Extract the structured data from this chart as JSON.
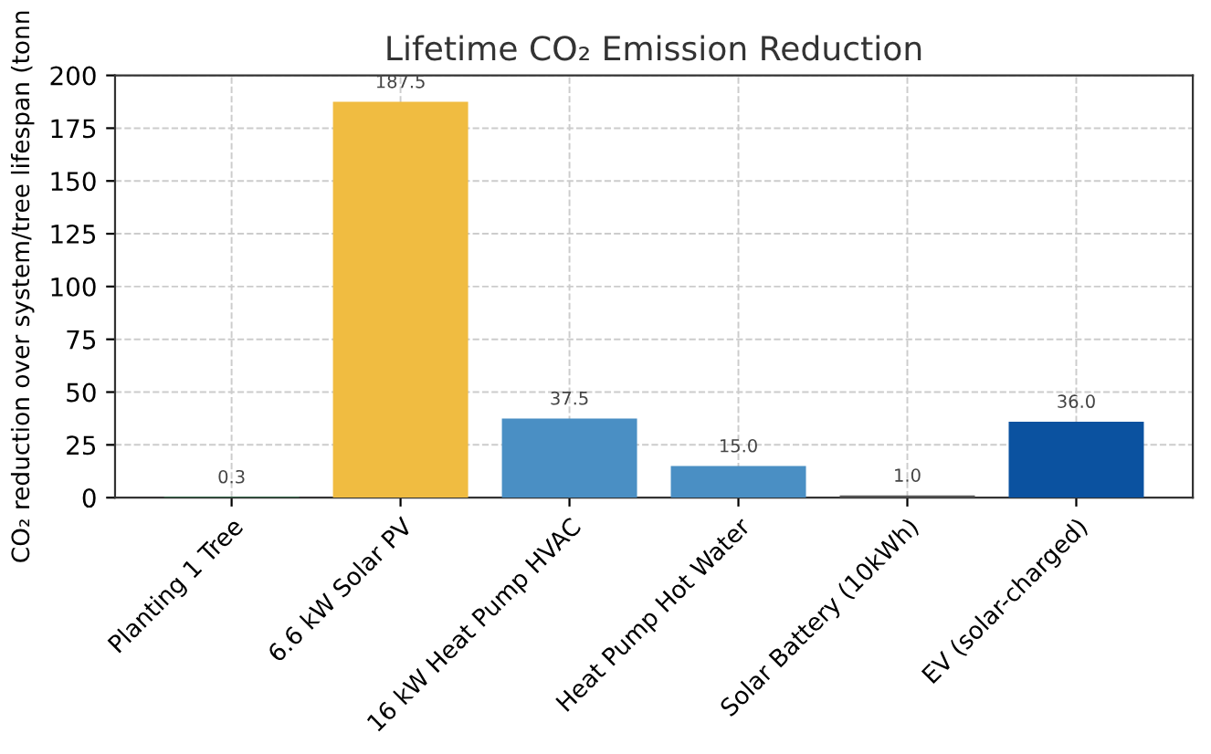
{
  "chart_data": {
    "type": "bar",
    "title": "Lifetime CO₂ Emission Reduction",
    "ylabel": "CO₂ reduction over system/tree lifespan (tonn",
    "categories": [
      "Planting 1 Tree",
      "6.6 kW Solar PV",
      "16 kW Heat Pump HVAC",
      "Heat Pump Hot Water",
      "Solar Battery (10kWh)",
      "EV (solar-charged)"
    ],
    "values": [
      0.3,
      187.5,
      37.5,
      15.0,
      1.0,
      36.0
    ],
    "colors": [
      "#2e8b57",
      "#f0bc41",
      "#4a8fc4",
      "#4a8fc4",
      "#555555",
      "#0b52a0"
    ],
    "value_labels": [
      "0.3",
      "187.5",
      "37.5",
      "15.0",
      "1.0",
      "36.0"
    ],
    "ylim": [
      0,
      200
    ],
    "yticks": [
      0,
      25,
      50,
      75,
      100,
      125,
      150,
      175,
      200
    ],
    "grid": true
  }
}
